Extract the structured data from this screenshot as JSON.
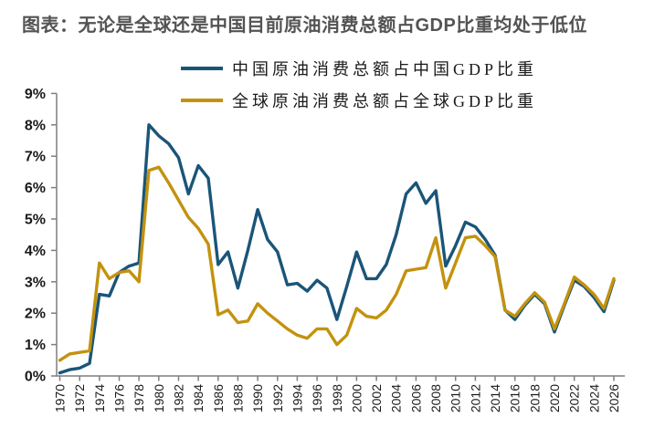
{
  "title": "图表：无论是全球还是中国目前原油消费总额占GDP比重均处于低位",
  "legend": {
    "items": [
      {
        "label": "中国原油消费总额占中国GDP比重",
        "color": "#1A5578"
      },
      {
        "label": "全球原油消费总额占全球GDP比重",
        "color": "#C3920E"
      }
    ]
  },
  "colors": {
    "china_line": "#1A5578",
    "global_line": "#C3920E",
    "axis": "#7F7F7F",
    "title_text": "#535353",
    "tick_text": "#1A1A1A",
    "background": "#FFFFFF"
  },
  "y_axis": {
    "tick_labels": [
      "0%",
      "1%",
      "2%",
      "3%",
      "4%",
      "5%",
      "6%",
      "7%",
      "8%",
      "9%"
    ],
    "min": 0,
    "max": 9
  },
  "x_axis": {
    "tick_labels": [
      "1970",
      "1972",
      "1974",
      "1976",
      "1978",
      "1980",
      "1982",
      "1984",
      "1986",
      "1988",
      "1990",
      "1992",
      "1994",
      "1996",
      "1998",
      "2000",
      "2002",
      "2004",
      "2006",
      "2008",
      "2010",
      "2012",
      "2014",
      "2016",
      "2018",
      "2020",
      "2022",
      "2024",
      "2026"
    ]
  },
  "chart_data": {
    "type": "line",
    "title": "图表：无论是全球还是中国目前原油消费总额占GDP比重均处于低位",
    "x": [
      1970,
      1971,
      1972,
      1973,
      1974,
      1975,
      1976,
      1977,
      1978,
      1979,
      1980,
      1981,
      1982,
      1983,
      1984,
      1985,
      1986,
      1987,
      1988,
      1989,
      1990,
      1991,
      1992,
      1993,
      1994,
      1995,
      1996,
      1997,
      1998,
      1999,
      2000,
      2001,
      2002,
      2003,
      2004,
      2005,
      2006,
      2007,
      2008,
      2009,
      2010,
      2011,
      2012,
      2013,
      2014,
      2015,
      2016,
      2017,
      2018,
      2019,
      2020,
      2021,
      2022,
      2023,
      2024,
      2025,
      2026
    ],
    "series": [
      {
        "name": "中国原油消费总额占中国GDP比重",
        "color": "#1A5578",
        "values": [
          0.1,
          0.2,
          0.25,
          0.4,
          2.6,
          2.55,
          3.3,
          3.5,
          3.6,
          8.0,
          7.65,
          7.4,
          6.95,
          5.8,
          6.7,
          6.3,
          3.55,
          3.95,
          2.8,
          4.0,
          5.3,
          4.35,
          3.95,
          2.9,
          2.95,
          2.7,
          3.05,
          2.8,
          1.8,
          2.85,
          3.95,
          3.1,
          3.1,
          3.55,
          4.5,
          5.8,
          6.15,
          5.5,
          5.9,
          3.5,
          4.15,
          4.9,
          4.75,
          4.35,
          3.85,
          2.1,
          1.8,
          2.25,
          2.6,
          2.3,
          1.4,
          2.25,
          3.05,
          2.85,
          2.5,
          2.05,
          3.05
        ]
      },
      {
        "name": "全球原油消费总额占全球GDP比重",
        "color": "#C3920E",
        "values": [
          0.5,
          0.7,
          0.75,
          0.8,
          3.6,
          3.1,
          3.3,
          3.35,
          3.0,
          6.55,
          6.65,
          6.15,
          5.6,
          5.05,
          4.7,
          4.2,
          1.95,
          2.1,
          1.7,
          1.75,
          2.3,
          2.0,
          1.75,
          1.5,
          1.3,
          1.2,
          1.5,
          1.5,
          1.0,
          1.3,
          2.15,
          1.9,
          1.85,
          2.1,
          2.6,
          3.35,
          3.4,
          3.45,
          4.4,
          2.8,
          3.6,
          4.4,
          4.45,
          4.15,
          3.8,
          2.1,
          1.9,
          2.3,
          2.65,
          2.35,
          1.5,
          2.3,
          3.15,
          2.9,
          2.6,
          2.15,
          3.1
        ]
      }
    ],
    "xlabel": "",
    "ylabel": "",
    "ylim": [
      0,
      9
    ],
    "xlim": [
      1970,
      2026
    ],
    "x_tick_step": 2,
    "grid": false,
    "legend_position": "top-center"
  }
}
